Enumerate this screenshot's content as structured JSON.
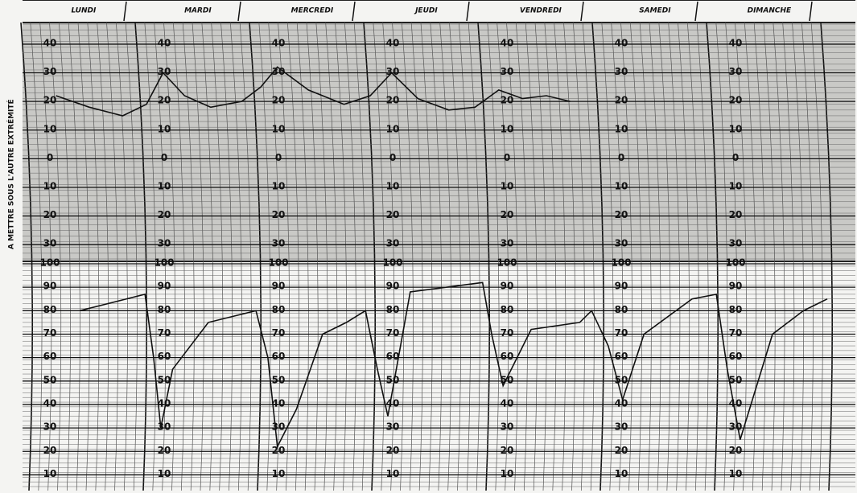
{
  "side_label": "A METTRE SOUS L'AUTRE EXTRÉMITÉ",
  "chart_data": [
    {
      "type": "line",
      "categories": [
        "LUNDI",
        "MARDI",
        "MERCREDI",
        "JEUDI",
        "VENDREDI",
        "SAMEDI",
        "DIMANCHE"
      ],
      "xlim": [
        0,
        168
      ],
      "ylim": [
        -35,
        47
      ],
      "yticks": [
        40,
        30,
        20,
        10,
        0,
        {
          "value": -10,
          "label": "10"
        },
        {
          "value": -20,
          "label": "20"
        },
        {
          "value": -30,
          "label": "30"
        }
      ],
      "grid": true,
      "color": "#111111",
      "x": [
        5,
        12,
        19,
        24,
        27.5,
        32,
        37.5,
        44,
        48,
        51.5,
        58,
        65.5,
        71,
        75.5,
        81,
        87.5,
        93,
        98,
        103,
        108,
        113
      ],
      "values": [
        22,
        18,
        15,
        19,
        30,
        22,
        18,
        20,
        25,
        32,
        24,
        19,
        22,
        30,
        21,
        17,
        18,
        24,
        21,
        22,
        20
      ]
    },
    {
      "type": "line",
      "xlim": [
        0,
        168
      ],
      "ylim": [
        5,
        100
      ],
      "yticks": [
        100,
        90,
        80,
        70,
        60,
        50,
        40,
        30,
        20,
        10
      ],
      "grid": true,
      "color": "#111111",
      "x": [
        10,
        23.7,
        25.5,
        27,
        29.5,
        37,
        47,
        49.5,
        51.5,
        55.5,
        61,
        66,
        70,
        72.5,
        74.7,
        79.4,
        94.6,
        96.5,
        98.9,
        104.8,
        115,
        117.5,
        121,
        124,
        128.5,
        138.6,
        143.7,
        146,
        148.7,
        155.5,
        162,
        167
      ],
      "values": [
        80,
        87,
        60,
        30,
        55,
        75,
        80,
        60,
        22,
        38,
        70,
        75,
        80,
        55,
        35,
        88,
        92,
        70,
        48,
        72,
        75,
        80,
        65,
        42,
        70,
        85,
        87,
        55,
        25,
        70,
        80,
        85
      ]
    }
  ]
}
